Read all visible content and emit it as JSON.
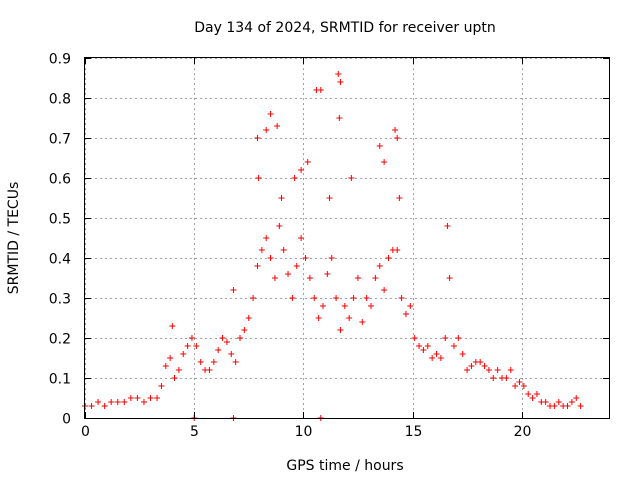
{
  "chart_data": {
    "type": "scatter",
    "title": "Day 134 of 2024, SRMTID for receiver uptn",
    "xlabel": "GPS time / hours",
    "ylabel": "SRMTID / TECUs",
    "xlim": [
      0,
      24
    ],
    "ylim": [
      0,
      0.9
    ],
    "xticks": [
      "0",
      "5",
      "10",
      "15",
      "20"
    ],
    "yticks": [
      "0",
      "0.1",
      "0.2",
      "0.3",
      "0.4",
      "0.5",
      "0.6",
      "0.7",
      "0.8",
      "0.9"
    ],
    "grid": true,
    "marker": "+",
    "color": "#ff0000",
    "series": [
      {
        "name": "SRMTID",
        "x": [
          0.0,
          0.3,
          0.6,
          0.9,
          1.2,
          1.5,
          1.8,
          2.1,
          2.4,
          2.7,
          3.0,
          3.3,
          3.5,
          3.7,
          3.9,
          4.1,
          4.3,
          4.5,
          4.7,
          4.9,
          5.1,
          5.3,
          5.5,
          5.7,
          5.9,
          6.1,
          6.3,
          6.5,
          6.7,
          6.9,
          7.1,
          7.3,
          7.5,
          7.7,
          7.9,
          8.1,
          8.3,
          8.5,
          8.7,
          8.9,
          9.1,
          9.3,
          9.5,
          9.7,
          9.9,
          10.1,
          10.3,
          10.5,
          10.7,
          10.9,
          11.1,
          11.3,
          11.5,
          11.7,
          11.9,
          12.1,
          12.3,
          12.5,
          12.7,
          12.9,
          13.1,
          13.3,
          13.5,
          13.7,
          13.9,
          14.1,
          14.3,
          14.5,
          14.7,
          14.9,
          15.1,
          15.3,
          15.5,
          15.7,
          15.9,
          16.1,
          16.3,
          16.5,
          16.7,
          16.9,
          17.1,
          17.3,
          17.5,
          17.7,
          17.9,
          18.1,
          18.3,
          18.5,
          18.7,
          18.9,
          19.1,
          19.3,
          19.5,
          19.7,
          19.9,
          20.1,
          20.3,
          20.5,
          20.7,
          20.9,
          21.1,
          21.3,
          21.5,
          21.7,
          21.9,
          22.1,
          22.3,
          22.5,
          22.7,
          8.3,
          8.5,
          8.8,
          9.0,
          9.6,
          10.2,
          10.8,
          11.2,
          11.6,
          11.7,
          12.2,
          13.5,
          13.7,
          14.2,
          14.3,
          14.4,
          16.6,
          4.0,
          6.8,
          7.9,
          7.95,
          9.9,
          10.6,
          11.65,
          5.0,
          6.8,
          10.8
        ],
        "y": [
          0.03,
          0.03,
          0.04,
          0.03,
          0.04,
          0.04,
          0.04,
          0.05,
          0.05,
          0.04,
          0.05,
          0.05,
          0.08,
          0.13,
          0.15,
          0.1,
          0.12,
          0.16,
          0.18,
          0.2,
          0.18,
          0.14,
          0.12,
          0.12,
          0.14,
          0.17,
          0.2,
          0.19,
          0.16,
          0.14,
          0.2,
          0.22,
          0.25,
          0.3,
          0.38,
          0.42,
          0.45,
          0.4,
          0.35,
          0.48,
          0.42,
          0.36,
          0.3,
          0.38,
          0.45,
          0.4,
          0.35,
          0.3,
          0.25,
          0.28,
          0.36,
          0.4,
          0.3,
          0.22,
          0.28,
          0.25,
          0.3,
          0.35,
          0.24,
          0.3,
          0.28,
          0.35,
          0.38,
          0.32,
          0.4,
          0.42,
          0.42,
          0.3,
          0.26,
          0.28,
          0.2,
          0.18,
          0.17,
          0.18,
          0.15,
          0.16,
          0.15,
          0.2,
          0.35,
          0.18,
          0.2,
          0.16,
          0.12,
          0.13,
          0.14,
          0.14,
          0.13,
          0.12,
          0.1,
          0.12,
          0.1,
          0.1,
          0.12,
          0.08,
          0.09,
          0.08,
          0.06,
          0.05,
          0.06,
          0.04,
          0.04,
          0.03,
          0.03,
          0.04,
          0.03,
          0.03,
          0.04,
          0.05,
          0.03,
          0.72,
          0.76,
          0.73,
          0.55,
          0.6,
          0.64,
          0.82,
          0.55,
          0.86,
          0.84,
          0.6,
          0.68,
          0.64,
          0.72,
          0.7,
          0.55,
          0.48,
          0.23,
          0.32,
          0.7,
          0.6,
          0.62,
          0.82,
          0.75,
          0.0,
          0.0,
          0.0
        ]
      }
    ]
  }
}
